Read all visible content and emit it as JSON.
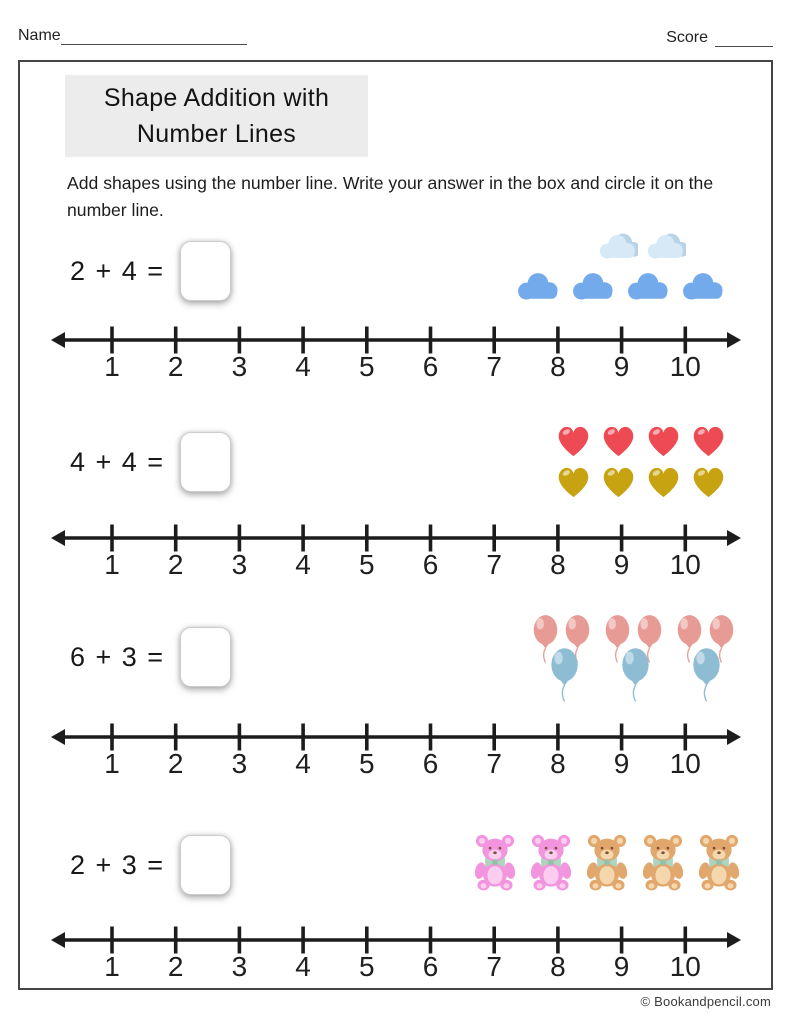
{
  "header": {
    "name_label": "Name",
    "score_label": "Score"
  },
  "title": {
    "line1": "Shape Addition with",
    "line2": "Number Lines"
  },
  "instructions": "Add shapes using the number line. Write your answer in the box and circle it on the number line.",
  "number_line": {
    "ticks": [
      "1",
      "2",
      "3",
      "4",
      "5",
      "6",
      "7",
      "8",
      "9",
      "10"
    ]
  },
  "problems": [
    {
      "equation": "2 + 4 =",
      "answer": "",
      "shape_type": "cloud",
      "rows": [
        {
          "count": 2,
          "variant": "light"
        },
        {
          "count": 4,
          "variant": "blue"
        }
      ]
    },
    {
      "equation": "4 + 4 =",
      "answer": "",
      "shape_type": "heart",
      "rows": [
        {
          "count": 4,
          "variant": "red"
        },
        {
          "count": 4,
          "variant": "gold"
        }
      ]
    },
    {
      "equation": "6 + 3 =",
      "answer": "",
      "shape_type": "balloon",
      "rows": [
        {
          "count": 6,
          "variant": "pink"
        },
        {
          "count": 3,
          "variant": "blue"
        }
      ]
    },
    {
      "equation": "2 + 3 =",
      "answer": "",
      "shape_type": "bear",
      "rows": [
        {
          "count": 2,
          "variant": "pink"
        },
        {
          "count": 3,
          "variant": "tan"
        }
      ]
    }
  ],
  "colors": {
    "cloud_light": "#d7e9f6",
    "cloud_light_edge": "#b7d3e6",
    "cloud_blue": "#73aaec",
    "heart_red": "#ee4a54",
    "heart_gold": "#c7a311",
    "balloon_pink": "#e89b95",
    "balloon_blue": "#8dbcd3",
    "bear_pink": "#f394de",
    "bear_pink_light": "#fbcdef",
    "bear_tan": "#e1a76c",
    "bear_tan_light": "#f4d7ac",
    "bow_green": "#aed3bf",
    "bow_green_dark": "#93c2a9",
    "bear_face": "#7a5138",
    "line_color": "#1c1c1c",
    "title_bg": "#ececec"
  },
  "footer": {
    "copyright": "© Bookandpencil.com"
  }
}
